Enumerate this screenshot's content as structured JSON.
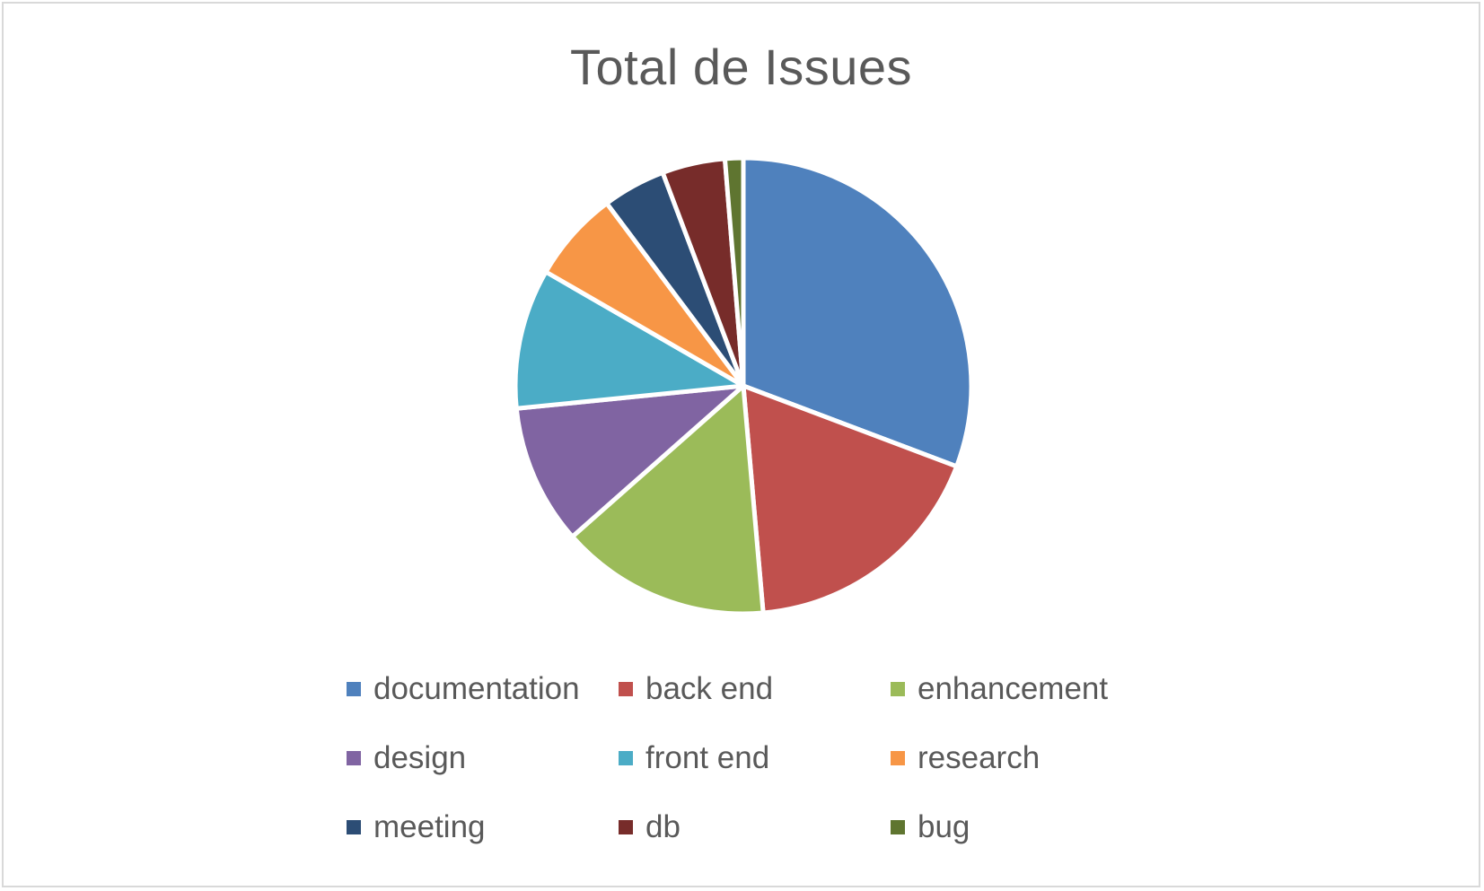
{
  "chart_data": {
    "type": "pie",
    "title": "Total de Issues",
    "categories": [
      "documentation",
      "back end",
      "enhancement",
      "design",
      "front end",
      "research",
      "meeting",
      "db",
      "bug"
    ],
    "values": [
      31,
      18,
      15,
      10,
      10,
      6.5,
      4.5,
      4.5,
      1.3
    ],
    "colors": [
      "#4F81BD",
      "#C0504D",
      "#9BBB59",
      "#8064A2",
      "#4BACC6",
      "#F79646",
      "#2C4D75",
      "#772C2A",
      "#5F7530"
    ],
    "legend_position": "bottom"
  }
}
